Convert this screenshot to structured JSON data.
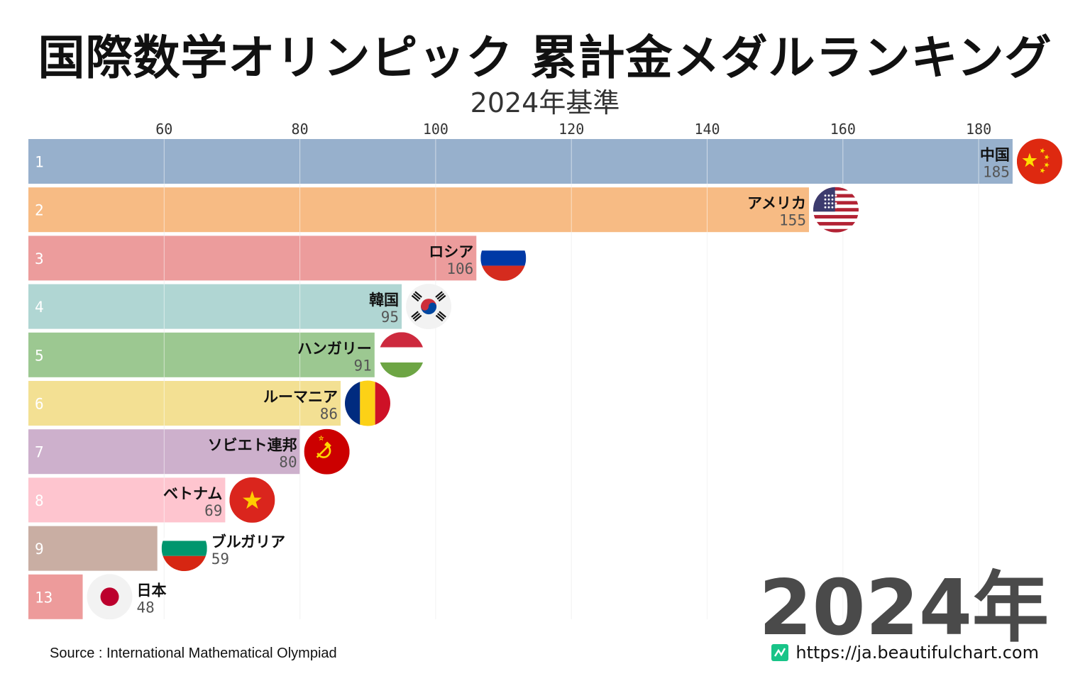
{
  "page": {
    "title": "国際数学オリンピック 累計金メダルランキング",
    "subtitle": "2024年基準",
    "year_label": "2024年",
    "source": "Source : International Mathematical Olympiad",
    "website": "https://ja.beautifulchart.com"
  },
  "chart_data": {
    "type": "bar",
    "orientation": "horizontal",
    "title": "国際数学オリンピック 累計金メダルランキング",
    "subtitle": "2024年基準",
    "xlim": [
      40,
      185
    ],
    "ticks": [
      60,
      80,
      100,
      120,
      140,
      160,
      180
    ],
    "grid": true,
    "categories": [
      "中国",
      "アメリカ",
      "ロシア",
      "韓国",
      "ハンガリー",
      "ルーマニア",
      "ソビエト連邦",
      "ベトナム",
      "ブルガリア",
      "日本"
    ],
    "ranks": [
      "1",
      "2",
      "3",
      "4",
      "5",
      "6",
      "7",
      "8",
      "9",
      "13"
    ],
    "values": [
      185,
      155,
      106,
      95,
      91,
      86,
      80,
      69,
      59,
      48
    ],
    "colors": [
      "#97b0cc",
      "#f7bb84",
      "#ec9c9c",
      "#b0d6d3",
      "#9cc891",
      "#f3e093",
      "#cdb0cc",
      "#fec5cf",
      "#c9aea3",
      "#ed9b9b"
    ],
    "flags": [
      "china-flag",
      "usa-flag",
      "russia-flag",
      "korea-flag",
      "hungary-flag",
      "romania-flag",
      "ussr-flag",
      "vietnam-flag",
      "bulgaria-flag",
      "japan-flag"
    ]
  }
}
